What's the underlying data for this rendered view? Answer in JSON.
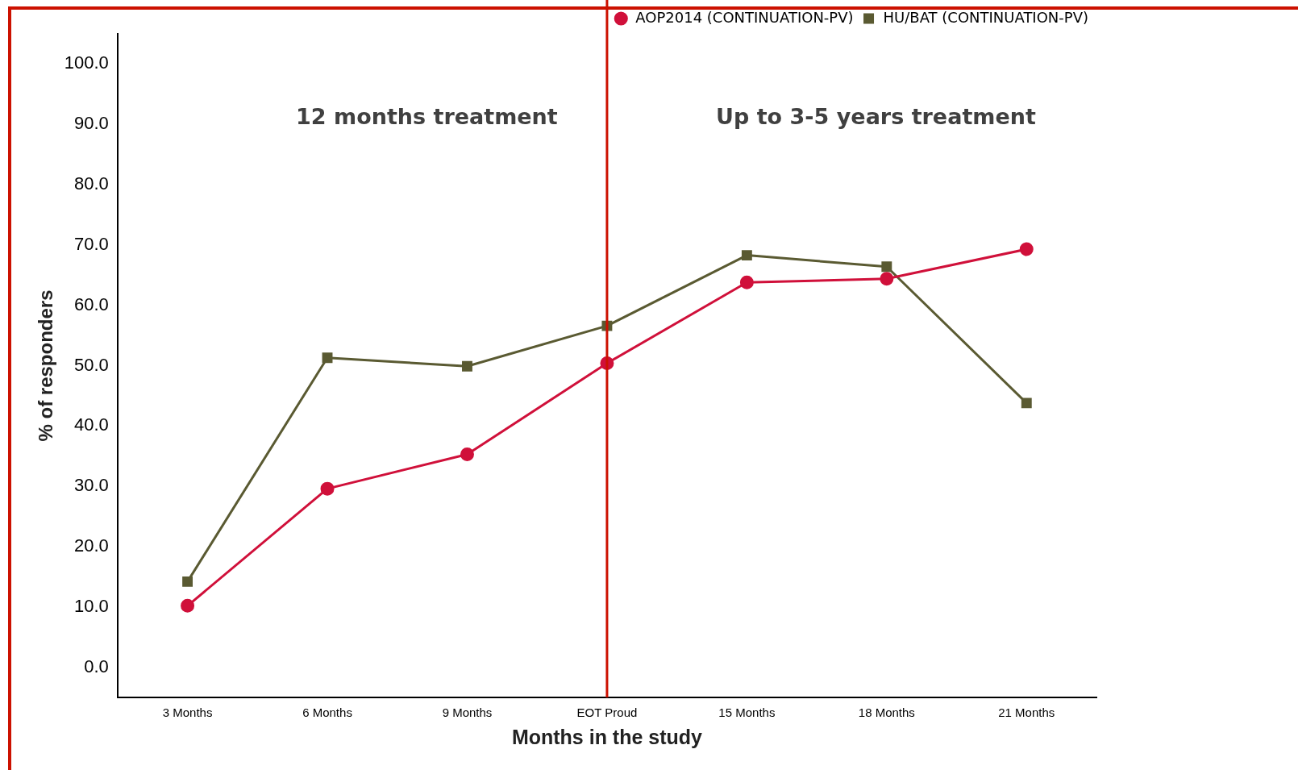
{
  "chart_data": {
    "type": "line",
    "xlabel": "Months in the study",
    "ylabel": "% of responders",
    "categories": [
      "3 Months",
      "6 Months",
      "9 Months",
      "EOT Proud",
      "15 Months",
      "18 Months",
      "21 Months"
    ],
    "series": [
      {
        "name": "AOP2014 (CONTINUATION-PV)",
        "color": "#d0103a",
        "marker": "circle",
        "values": [
          10.2,
          29.6,
          35.3,
          50.4,
          63.8,
          64.4,
          69.3
        ]
      },
      {
        "name": "HU/BAT (CONTINUATION-PV)",
        "color": "#5a5a32",
        "marker": "square",
        "values": [
          14.2,
          51.3,
          49.9,
          56.6,
          68.3,
          66.4,
          43.8
        ]
      }
    ],
    "ylim": [
      -5,
      105
    ],
    "yticks": [
      {
        "value": 0,
        "label": "0.0"
      },
      {
        "value": 10,
        "label": "10.0"
      },
      {
        "value": 20,
        "label": "20.0"
      },
      {
        "value": 30,
        "label": "30.0"
      },
      {
        "value": 40,
        "label": "40.0"
      },
      {
        "value": 50,
        "label": "50.0"
      },
      {
        "value": 60,
        "label": "60.0"
      },
      {
        "value": 70,
        "label": "70.0"
      },
      {
        "value": 80,
        "label": "80.0"
      },
      {
        "value": 90,
        "label": "90.0"
      },
      {
        "value": 100,
        "label": "100.0"
      }
    ],
    "ref_lines": [
      {
        "axis": "x",
        "value": "EOT Proud",
        "color": "#cc1100"
      }
    ],
    "annotations": [
      "12 months treatment",
      "Up to 3-5 years treatment"
    ],
    "grid": false,
    "legend": "top right",
    "line_style": "solid"
  }
}
